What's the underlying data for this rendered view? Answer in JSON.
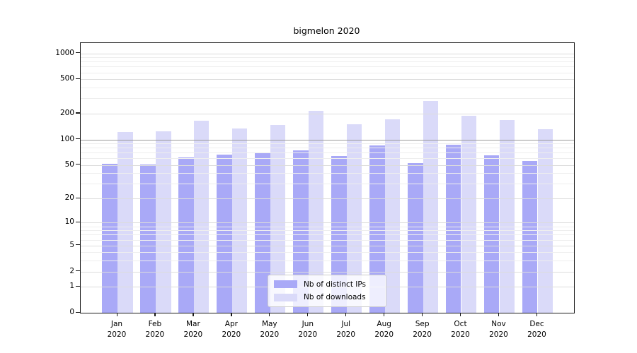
{
  "title": "bigmelon 2020",
  "legend": {
    "items": [
      {
        "label": "Nb of distinct IPs",
        "color": "#a9a9f7"
      },
      {
        "label": "Nb of downloads",
        "color": "#dadaf9"
      }
    ]
  },
  "chart_data": {
    "type": "bar",
    "title": "bigmelon 2020",
    "categories": [
      "Jan 2020",
      "Feb 2020",
      "Mar 2020",
      "Apr 2020",
      "May 2020",
      "Jun 2020",
      "Jul 2020",
      "Aug 2020",
      "Sep 2020",
      "Oct 2020",
      "Nov 2020",
      "Dec 2020"
    ],
    "series": [
      {
        "name": "Nb of distinct IPs",
        "color": "#a9a9f7",
        "values": [
          52,
          51,
          62,
          66,
          70,
          75,
          64,
          85,
          53,
          87,
          65,
          56
        ]
      },
      {
        "name": "Nb of downloads",
        "color": "#dadaf9",
        "values": [
          121,
          124,
          166,
          135,
          147,
          215,
          151,
          173,
          278,
          190,
          168,
          132
        ]
      }
    ],
    "xlabel": "",
    "ylabel": "",
    "yscale": "log1p",
    "ylim": [
      0,
      1340
    ],
    "y_ticks": [
      1000,
      500,
      200,
      100,
      50,
      20,
      10,
      5,
      2,
      1,
      0
    ],
    "y_minor_ticks": [
      900,
      800,
      700,
      600,
      400,
      300,
      90,
      80,
      70,
      60,
      40,
      30,
      9,
      8,
      7,
      6,
      4,
      3
    ],
    "grid": true,
    "emphasized_gridline": 100,
    "legend_position": "inside lower center",
    "colors": {
      "grid_major": "#dcdcdc",
      "grid_minor": "#eeeeee",
      "grid_emphasis": "#999999",
      "spine": "#1a1a1a",
      "background": "#ffffff"
    }
  }
}
